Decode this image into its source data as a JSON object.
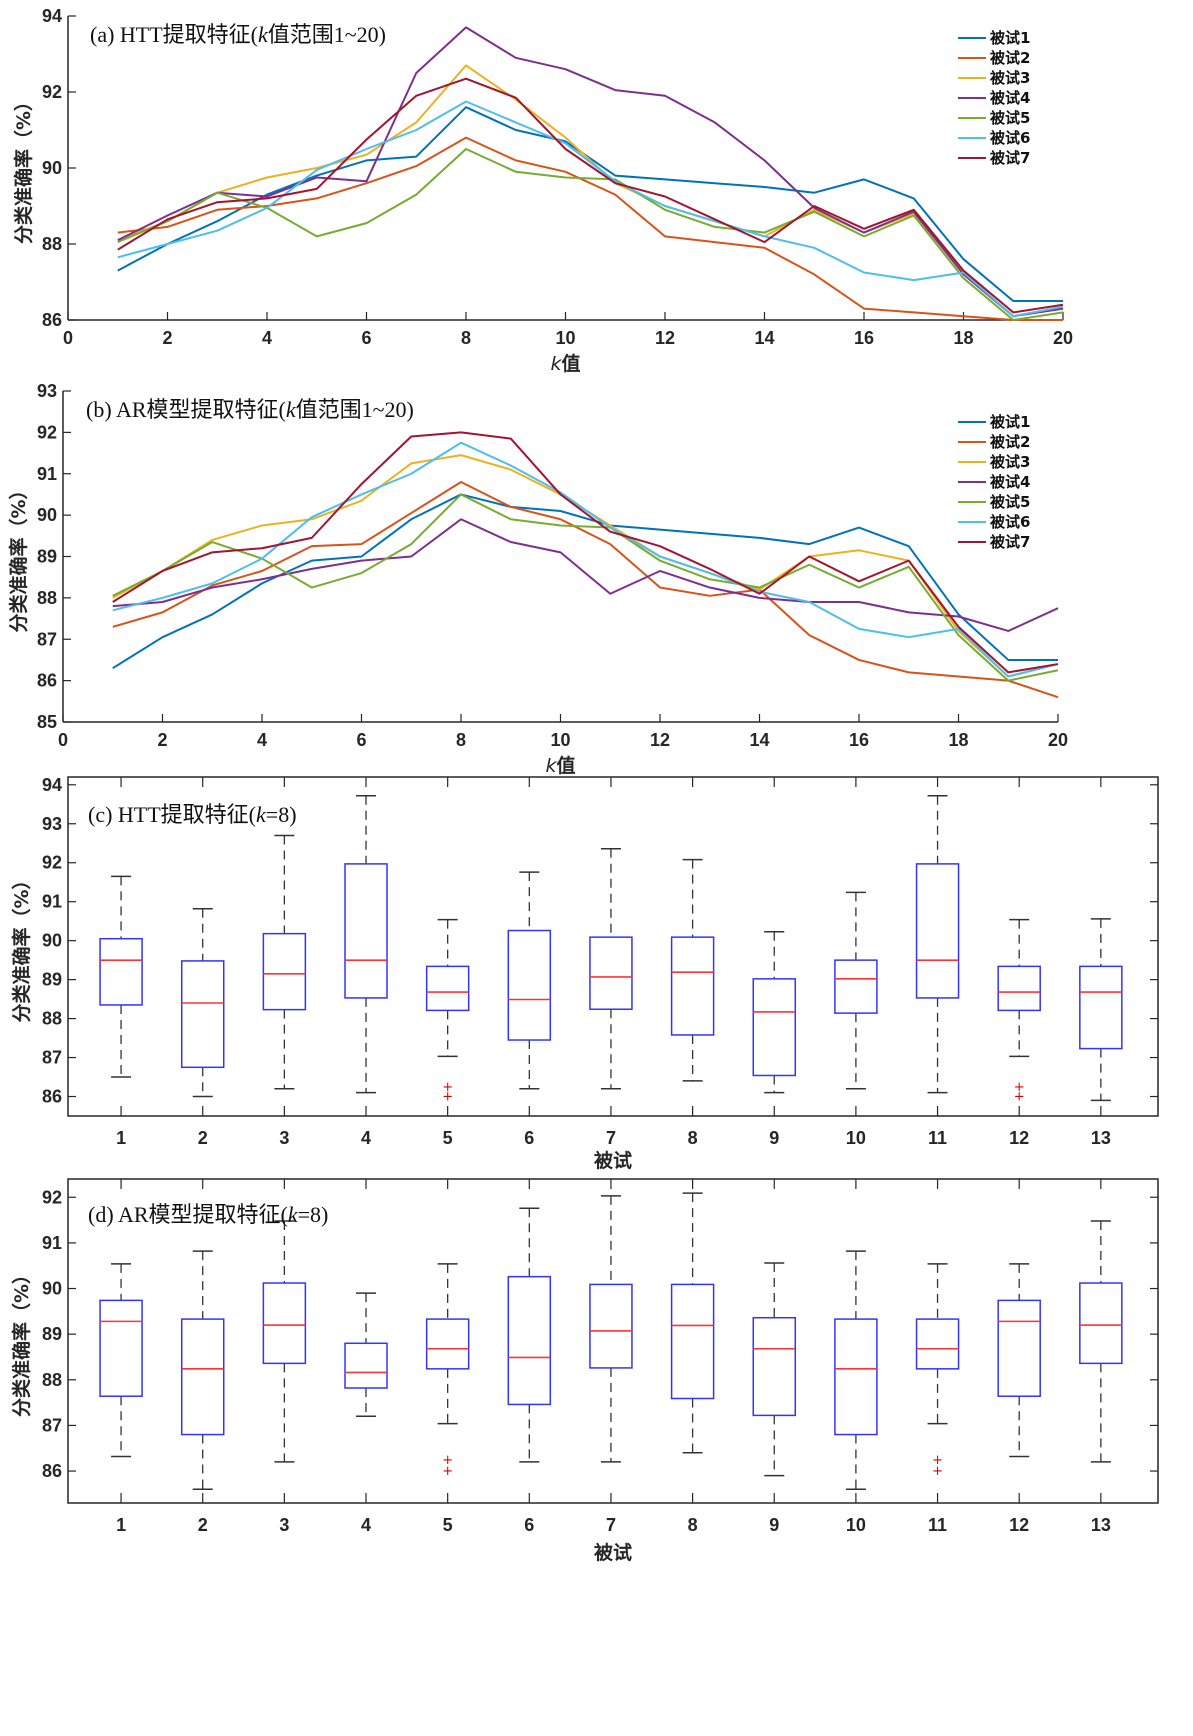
{
  "figure": {
    "colors": {
      "series": [
        "#0072BD",
        "#D95319",
        "#EDB120",
        "#7E2F8E",
        "#77AC30",
        "#4DBEEE",
        "#A2142F"
      ],
      "box": "#3333ff",
      "median": "#ff3333",
      "whisker": "#333333",
      "outlier": "#dd0000",
      "axis": "#262626"
    }
  },
  "chart_data": [
    {
      "type": "line",
      "panel": "a",
      "title": "(a) HTT提取特征(k值范围1~20)",
      "title_parts": {
        "prefix": "(a) HTT提取特征(",
        "italic": "k",
        "suffix": "值范围1~20)"
      },
      "xlabel": "k值",
      "xlabel_parts": {
        "italic": "k",
        "rest": "值"
      },
      "ylabel": "分类准确率（%）",
      "xlim": [
        0,
        20
      ],
      "ylim": [
        86,
        94
      ],
      "xticks": [
        0,
        2,
        4,
        6,
        8,
        10,
        12,
        14,
        16,
        18,
        20
      ],
      "yticks": [
        86,
        88,
        90,
        92,
        94
      ],
      "grid": false,
      "legend": "top-right",
      "x": [
        1,
        2,
        3,
        4,
        5,
        6,
        7,
        8,
        9,
        10,
        11,
        12,
        13,
        14,
        15,
        16,
        17,
        18,
        19,
        20
      ],
      "series": [
        {
          "name": "被试1",
          "values": [
            87.3,
            88.0,
            88.6,
            89.3,
            89.8,
            90.2,
            90.3,
            91.6,
            91.0,
            90.7,
            89.8,
            89.7,
            89.6,
            89.5,
            89.35,
            89.7,
            89.2,
            87.6,
            86.5,
            86.5
          ]
        },
        {
          "name": "被试2",
          "values": [
            88.3,
            88.45,
            88.9,
            89.0,
            89.2,
            89.6,
            90.05,
            90.8,
            90.2,
            89.9,
            89.3,
            88.2,
            88.05,
            87.9,
            87.2,
            86.3,
            86.2,
            86.1,
            86.0,
            86.0
          ]
        },
        {
          "name": "被试3",
          "values": [
            88.1,
            88.6,
            89.35,
            89.75,
            90.0,
            90.35,
            91.2,
            92.7,
            91.8,
            90.8,
            89.6,
            89.0,
            88.6,
            88.2,
            88.9,
            88.3,
            88.8,
            87.25,
            86.1,
            86.3
          ]
        },
        {
          "name": "被试4",
          "values": [
            88.1,
            88.75,
            89.35,
            89.25,
            89.75,
            89.65,
            92.5,
            93.7,
            92.9,
            92.6,
            92.05,
            91.9,
            91.2,
            90.2,
            88.95,
            88.3,
            88.85,
            87.2,
            86.1,
            86.3
          ]
        },
        {
          "name": "被试5",
          "values": [
            88.05,
            88.6,
            89.35,
            88.95,
            88.2,
            88.55,
            89.3,
            90.5,
            89.9,
            89.75,
            89.7,
            88.9,
            88.45,
            88.3,
            88.85,
            88.2,
            88.75,
            87.1,
            86.0,
            86.2
          ]
        },
        {
          "name": "被试6",
          "values": [
            87.65,
            88.0,
            88.35,
            88.95,
            89.95,
            90.5,
            91.0,
            91.75,
            91.2,
            90.65,
            89.65,
            89.0,
            88.6,
            88.2,
            87.9,
            87.25,
            87.05,
            87.25,
            86.1,
            86.35
          ]
        },
        {
          "name": "被试7",
          "values": [
            87.85,
            88.65,
            89.1,
            89.2,
            89.45,
            90.75,
            91.9,
            92.35,
            91.85,
            90.5,
            89.6,
            89.25,
            88.65,
            88.05,
            89.0,
            88.4,
            88.9,
            87.3,
            86.2,
            86.4
          ]
        }
      ]
    },
    {
      "type": "line",
      "panel": "b",
      "title": "(b) AR模型提取特征(k值范围1~20)",
      "title_parts": {
        "prefix": "(b) AR模型提取特征(",
        "italic": "k",
        "suffix": "值范围1~20)"
      },
      "xlabel": "k值",
      "xlabel_parts": {
        "italic": "k",
        "rest": "值"
      },
      "ylabel": "分类准确率（%）",
      "xlim": [
        0,
        20
      ],
      "ylim": [
        85,
        93
      ],
      "xticks": [
        0,
        2,
        4,
        6,
        8,
        10,
        12,
        14,
        16,
        18,
        20
      ],
      "yticks": [
        85,
        86,
        87,
        88,
        89,
        90,
        91,
        92,
        93
      ],
      "grid": false,
      "legend": "top-right",
      "x": [
        1,
        2,
        3,
        4,
        5,
        6,
        7,
        8,
        9,
        10,
        11,
        12,
        13,
        14,
        15,
        16,
        17,
        18,
        19,
        20
      ],
      "series": [
        {
          "name": "被试1",
          "values": [
            86.3,
            87.05,
            87.6,
            88.35,
            88.9,
            89.0,
            89.9,
            90.5,
            90.2,
            90.1,
            89.75,
            89.65,
            89.55,
            89.45,
            89.3,
            89.7,
            89.25,
            87.6,
            86.5,
            86.5
          ]
        },
        {
          "name": "被试2",
          "values": [
            87.3,
            87.65,
            88.3,
            88.65,
            89.25,
            89.3,
            90.05,
            90.8,
            90.2,
            89.9,
            89.3,
            88.25,
            88.05,
            88.2,
            87.1,
            86.5,
            86.2,
            86.1,
            86.0,
            85.6
          ]
        },
        {
          "name": "被试3",
          "values": [
            88.0,
            88.65,
            89.4,
            89.75,
            89.9,
            90.35,
            91.25,
            91.45,
            91.1,
            90.5,
            89.75,
            89.0,
            88.6,
            88.2,
            89.0,
            89.15,
            88.9,
            87.2,
            86.1,
            86.4
          ]
        },
        {
          "name": "被试4",
          "values": [
            87.8,
            87.9,
            88.25,
            88.45,
            88.7,
            88.9,
            89.0,
            89.9,
            89.35,
            89.1,
            88.1,
            88.65,
            88.25,
            88.0,
            87.9,
            87.9,
            87.65,
            87.55,
            87.2,
            87.75
          ]
        },
        {
          "name": "被试5",
          "values": [
            88.05,
            88.65,
            89.35,
            88.95,
            88.25,
            88.6,
            89.3,
            90.5,
            89.9,
            89.75,
            89.7,
            88.9,
            88.45,
            88.25,
            88.8,
            88.25,
            88.75,
            87.1,
            86.0,
            86.25
          ]
        },
        {
          "name": "被试6",
          "values": [
            87.7,
            88.0,
            88.35,
            88.95,
            89.95,
            90.5,
            91.0,
            91.75,
            91.2,
            90.55,
            89.7,
            89.0,
            88.6,
            88.15,
            87.9,
            87.25,
            87.05,
            87.25,
            86.1,
            86.4
          ]
        },
        {
          "name": "被试7",
          "values": [
            87.9,
            88.65,
            89.1,
            89.2,
            89.45,
            90.75,
            91.9,
            92.0,
            91.85,
            90.5,
            89.6,
            89.25,
            88.7,
            88.1,
            89.0,
            88.4,
            88.9,
            87.3,
            86.2,
            86.4
          ]
        }
      ]
    },
    {
      "type": "box",
      "panel": "c",
      "title": "(c) HTT提取特征(k=8)",
      "title_parts": {
        "prefix": "(c) HTT提取特征(",
        "italic": "k",
        "suffix": "=8)"
      },
      "xlabel": "被试",
      "ylabel": "分类准确率（%）",
      "ylim": [
        85.5,
        94.2
      ],
      "yticks": [
        86,
        87,
        88,
        89,
        90,
        91,
        92,
        93,
        94
      ],
      "grid": false,
      "categories": [
        "1",
        "2",
        "3",
        "4",
        "5",
        "6",
        "7",
        "8",
        "9",
        "10",
        "11",
        "12",
        "13"
      ],
      "boxes": [
        {
          "whisker_low": 86.5,
          "q1": 88.35,
          "median": 89.5,
          "q3": 90.05,
          "whisker_high": 91.65,
          "outliers": []
        },
        {
          "whisker_low": 86.0,
          "q1": 86.75,
          "median": 88.4,
          "q3": 89.48,
          "whisker_high": 90.82,
          "outliers": []
        },
        {
          "whisker_low": 86.2,
          "q1": 88.23,
          "median": 89.15,
          "q3": 90.18,
          "whisker_high": 92.7,
          "outliers": []
        },
        {
          "whisker_low": 86.1,
          "q1": 88.53,
          "median": 89.5,
          "q3": 91.97,
          "whisker_high": 93.72,
          "outliers": []
        },
        {
          "whisker_low": 87.03,
          "q1": 88.21,
          "median": 88.68,
          "q3": 89.34,
          "whisker_high": 90.54,
          "outliers": [
            86.25,
            86.0
          ]
        },
        {
          "whisker_low": 86.2,
          "q1": 87.45,
          "median": 88.49,
          "q3": 90.26,
          "whisker_high": 91.76,
          "outliers": []
        },
        {
          "whisker_low": 86.2,
          "q1": 88.24,
          "median": 89.07,
          "q3": 90.09,
          "whisker_high": 92.36,
          "outliers": []
        },
        {
          "whisker_low": 86.4,
          "q1": 87.58,
          "median": 89.19,
          "q3": 90.09,
          "whisker_high": 92.08,
          "outliers": []
        },
        {
          "whisker_low": 86.1,
          "q1": 86.54,
          "median": 88.17,
          "q3": 89.02,
          "whisker_high": 90.23,
          "outliers": []
        },
        {
          "whisker_low": 86.2,
          "q1": 88.14,
          "median": 89.02,
          "q3": 89.5,
          "whisker_high": 91.24,
          "outliers": []
        },
        {
          "whisker_low": 86.1,
          "q1": 88.53,
          "median": 89.5,
          "q3": 91.97,
          "whisker_high": 93.72,
          "outliers": []
        },
        {
          "whisker_low": 87.03,
          "q1": 88.21,
          "median": 88.68,
          "q3": 89.34,
          "whisker_high": 90.54,
          "outliers": [
            86.25,
            86.0
          ]
        },
        {
          "whisker_low": 85.9,
          "q1": 87.23,
          "median": 88.68,
          "q3": 89.34,
          "whisker_high": 90.56,
          "outliers": []
        }
      ]
    },
    {
      "type": "box",
      "panel": "d",
      "title": "(d) AR模型提取特征(k=8)",
      "title_parts": {
        "prefix": "(d) AR模型提取特征(",
        "italic": "k",
        "suffix": "=8)"
      },
      "xlabel": "被试",
      "ylabel": "分类准确率（%）",
      "ylim": [
        85.3,
        92.4
      ],
      "yticks": [
        86,
        87,
        88,
        89,
        90,
        91,
        92
      ],
      "grid": false,
      "categories": [
        "1",
        "2",
        "3",
        "4",
        "5",
        "6",
        "7",
        "8",
        "9",
        "10",
        "11",
        "12",
        "13"
      ],
      "boxes": [
        {
          "whisker_low": 86.32,
          "q1": 87.64,
          "median": 89.28,
          "q3": 89.74,
          "whisker_high": 90.54,
          "outliers": []
        },
        {
          "whisker_low": 85.6,
          "q1": 86.8,
          "median": 88.24,
          "q3": 89.33,
          "whisker_high": 90.82,
          "outliers": []
        },
        {
          "whisker_low": 86.2,
          "q1": 88.36,
          "median": 89.2,
          "q3": 90.12,
          "whisker_high": 91.48,
          "outliers": []
        },
        {
          "whisker_low": 87.2,
          "q1": 87.82,
          "median": 88.16,
          "q3": 88.8,
          "whisker_high": 89.9,
          "outliers": []
        },
        {
          "whisker_low": 87.04,
          "q1": 88.24,
          "median": 88.68,
          "q3": 89.33,
          "whisker_high": 90.54,
          "outliers": [
            86.24,
            86.0
          ]
        },
        {
          "whisker_low": 86.2,
          "q1": 87.46,
          "median": 88.49,
          "q3": 90.26,
          "whisker_high": 91.76,
          "outliers": []
        },
        {
          "whisker_low": 86.2,
          "q1": 88.26,
          "median": 89.07,
          "q3": 90.09,
          "whisker_high": 92.03,
          "outliers": []
        },
        {
          "whisker_low": 86.4,
          "q1": 87.59,
          "median": 89.19,
          "q3": 90.09,
          "whisker_high": 92.09,
          "outliers": []
        },
        {
          "whisker_low": 85.9,
          "q1": 87.22,
          "median": 88.68,
          "q3": 89.36,
          "whisker_high": 90.56,
          "outliers": []
        },
        {
          "whisker_low": 85.6,
          "q1": 86.8,
          "median": 88.24,
          "q3": 89.33,
          "whisker_high": 90.82,
          "outliers": []
        },
        {
          "whisker_low": 87.04,
          "q1": 88.24,
          "median": 88.68,
          "q3": 89.33,
          "whisker_high": 90.54,
          "outliers": [
            86.24,
            86.0
          ]
        },
        {
          "whisker_low": 86.32,
          "q1": 87.64,
          "median": 89.28,
          "q3": 89.74,
          "whisker_high": 90.54,
          "outliers": []
        },
        {
          "whisker_low": 86.2,
          "q1": 88.36,
          "median": 89.2,
          "q3": 90.12,
          "whisker_high": 91.48,
          "outliers": []
        }
      ]
    }
  ]
}
